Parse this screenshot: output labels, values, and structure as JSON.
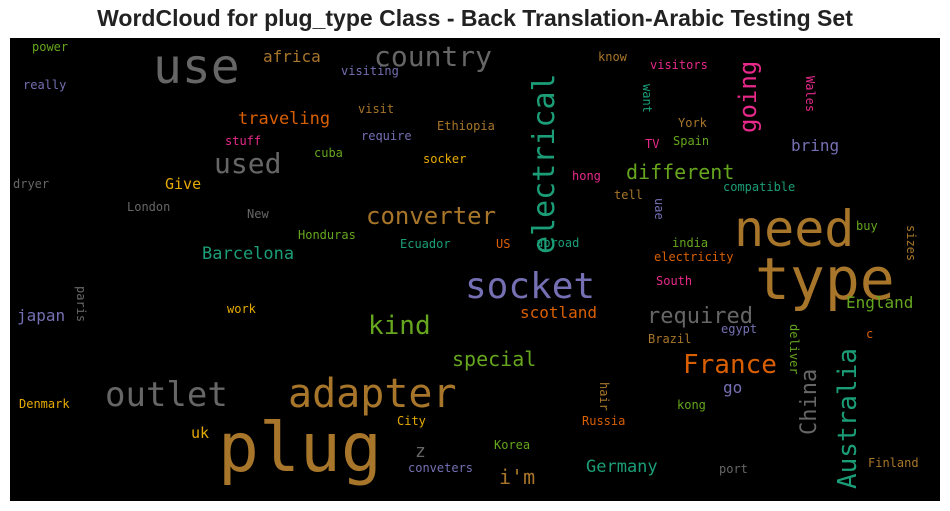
{
  "title": "WordCloud for plug_type Class - Back Translation-Arabic Testing Set",
  "colors": {
    "background": "#000000",
    "title": "#222222"
  },
  "words": [
    {
      "text": "plug",
      "color": "#a8762a"
    },
    {
      "text": "type",
      "color": "#a8762a"
    },
    {
      "text": "need",
      "color": "#a8762a"
    },
    {
      "text": "use",
      "color": "#666666"
    },
    {
      "text": "adapter",
      "color": "#a8762a"
    },
    {
      "text": "outlet",
      "color": "#666666"
    },
    {
      "text": "socket",
      "color": "#7570b3"
    },
    {
      "text": "electrical",
      "color": "#1b9e77"
    },
    {
      "text": "country",
      "color": "#666666"
    },
    {
      "text": "converter",
      "color": "#a8762a"
    },
    {
      "text": "Australia",
      "color": "#1b9e77"
    },
    {
      "text": "used",
      "color": "#666666"
    },
    {
      "text": "kind",
      "color": "#66a61e"
    },
    {
      "text": "France",
      "color": "#d95f02"
    },
    {
      "text": "going",
      "color": "#e7298a"
    },
    {
      "text": "different",
      "color": "#66a61e"
    },
    {
      "text": "required",
      "color": "#666666"
    },
    {
      "text": "special",
      "color": "#66a61e"
    },
    {
      "text": "China",
      "color": "#666666"
    },
    {
      "text": "i'm",
      "color": "#a8762a"
    },
    {
      "text": "Germany",
      "color": "#1b9e77"
    },
    {
      "text": "traveling",
      "color": "#d95f02"
    },
    {
      "text": "Barcelona",
      "color": "#1b9e77"
    },
    {
      "text": "scotland",
      "color": "#d95f02"
    },
    {
      "text": "England",
      "color": "#66a61e"
    },
    {
      "text": "africa",
      "color": "#a8762a"
    },
    {
      "text": "japan",
      "color": "#7570b3"
    },
    {
      "text": "bring",
      "color": "#7570b3"
    },
    {
      "text": "Give",
      "color": "#e6ab02"
    },
    {
      "text": "uk",
      "color": "#e6ab02"
    },
    {
      "text": "z",
      "color": "#666666"
    },
    {
      "text": "go",
      "color": "#7570b3"
    },
    {
      "text": "power",
      "color": "#66a61e"
    },
    {
      "text": "really",
      "color": "#7570b3"
    },
    {
      "text": "visiting",
      "color": "#7570b3"
    },
    {
      "text": "know",
      "color": "#a8762a"
    },
    {
      "text": "visitors",
      "color": "#e7298a"
    },
    {
      "text": "Wales",
      "color": "#e7298a"
    },
    {
      "text": "visit",
      "color": "#a8762a"
    },
    {
      "text": "stuff",
      "color": "#e7298a"
    },
    {
      "text": "require",
      "color": "#7570b3"
    },
    {
      "text": "Ethiopia",
      "color": "#a8762a"
    },
    {
      "text": "want",
      "color": "#1b9e77"
    },
    {
      "text": "York",
      "color": "#a8762a"
    },
    {
      "text": "Spain",
      "color": "#66a61e"
    },
    {
      "text": "TV",
      "color": "#e7298a"
    },
    {
      "text": "cuba",
      "color": "#66a61e"
    },
    {
      "text": "socker",
      "color": "#e6ab02"
    },
    {
      "text": "hong",
      "color": "#e7298a"
    },
    {
      "text": "tell",
      "color": "#a8762a"
    },
    {
      "text": "compatible",
      "color": "#1b9e77"
    },
    {
      "text": "dryer",
      "color": "#666666"
    },
    {
      "text": "London",
      "color": "#666666"
    },
    {
      "text": "New",
      "color": "#666666"
    },
    {
      "text": "Honduras",
      "color": "#66a61e"
    },
    {
      "text": "Ecuador",
      "color": "#1b9e77"
    },
    {
      "text": "US",
      "color": "#d95f02"
    },
    {
      "text": "abroad",
      "color": "#1b9e77"
    },
    {
      "text": "uae",
      "color": "#7570b3"
    },
    {
      "text": "india",
      "color": "#66a61e"
    },
    {
      "text": "electricity",
      "color": "#d95f02"
    },
    {
      "text": "buy",
      "color": "#66a61e"
    },
    {
      "text": "sizes",
      "color": "#a8762a"
    },
    {
      "text": "South",
      "color": "#e7298a"
    },
    {
      "text": "paris",
      "color": "#666666"
    },
    {
      "text": "work",
      "color": "#e6ab02"
    },
    {
      "text": "egypt",
      "color": "#7570b3"
    },
    {
      "text": "deliver",
      "color": "#66a61e"
    },
    {
      "text": "c",
      "color": "#d95f02"
    },
    {
      "text": "Brazil",
      "color": "#a8762a"
    },
    {
      "text": "Denmark",
      "color": "#e6ab02"
    },
    {
      "text": "hair",
      "color": "#a8762a"
    },
    {
      "text": "kong",
      "color": "#66a61e"
    },
    {
      "text": "City",
      "color": "#e6ab02"
    },
    {
      "text": "Russia",
      "color": "#d95f02"
    },
    {
      "text": "Korea",
      "color": "#66a61e"
    },
    {
      "text": "conveters",
      "color": "#7570b3"
    },
    {
      "text": "port",
      "color": "#666666"
    },
    {
      "text": "Finland",
      "color": "#a8762a"
    }
  ]
}
